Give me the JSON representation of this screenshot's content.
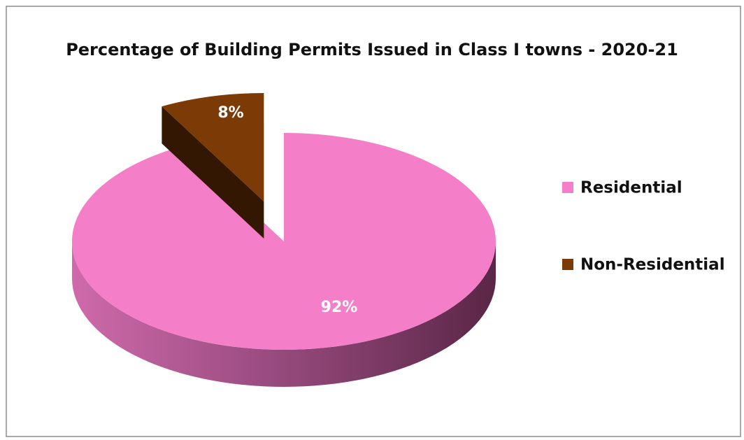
{
  "chart_data": {
    "type": "pie",
    "title": "Percentage of Building Permits Issued in Class I towns - 2020-21",
    "categories": [
      "Residential",
      "Non-Residential"
    ],
    "values": [
      92,
      8
    ],
    "value_labels": [
      "92%",
      "8%"
    ],
    "colors": [
      "#f47ec8",
      "#7b3a06"
    ],
    "legend": "right"
  }
}
